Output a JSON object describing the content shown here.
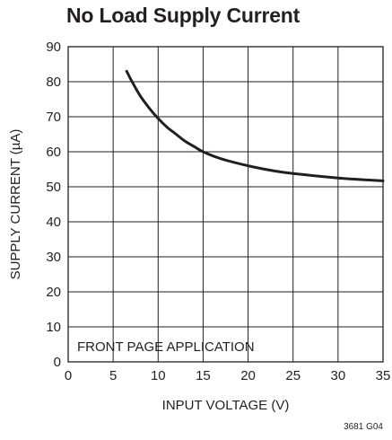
{
  "chart_data": {
    "type": "line",
    "title": "No Load Supply Current",
    "xlabel": "INPUT VOLTAGE (V)",
    "ylabel": "SUPPLY CURRENT (µA)",
    "xlim": [
      0,
      35
    ],
    "ylim": [
      0,
      90
    ],
    "xticks": [
      0,
      5,
      10,
      15,
      20,
      25,
      30,
      35
    ],
    "yticks": [
      0,
      10,
      20,
      30,
      40,
      50,
      60,
      70,
      80,
      90
    ],
    "grid": true,
    "annotation": "FRONT PAGE APPLICATION",
    "figure_id": "3681 G04",
    "series": [
      {
        "color": "#231f20",
        "x": [
          6.5,
          7,
          8,
          9,
          10,
          11,
          12,
          13,
          14,
          15,
          17,
          20,
          23,
          26,
          30,
          33,
          35
        ],
        "y": [
          83,
          80.5,
          76,
          72.5,
          69.5,
          67,
          65,
          63,
          61.5,
          60,
          58,
          56,
          54.5,
          53.5,
          52.5,
          52,
          51.7
        ]
      }
    ]
  }
}
